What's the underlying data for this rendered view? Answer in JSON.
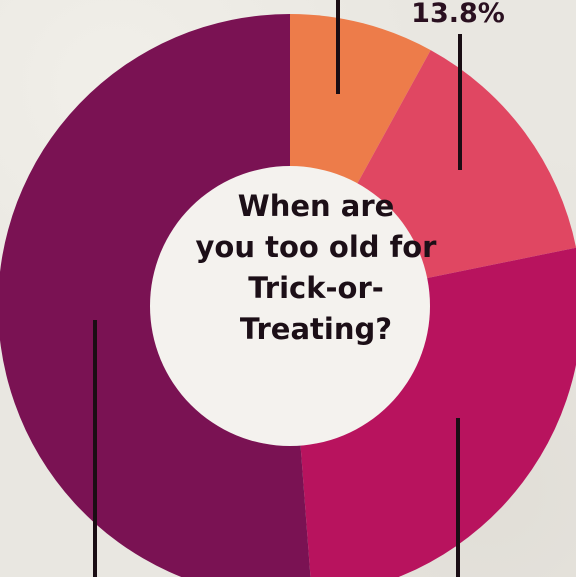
{
  "chart_data": {
    "type": "pie",
    "title_lines": [
      "When are",
      "you too old for",
      "Trick-or-",
      "Treating?"
    ],
    "slices": [
      {
        "value": 8.0,
        "label": "",
        "color": "#ed7c4a"
      },
      {
        "value": 13.8,
        "label": "13.8%",
        "color": "#e04762"
      },
      {
        "value": 27.0,
        "label": "",
        "color": "#b8135e"
      },
      {
        "value": 51.2,
        "label": "",
        "color": "#7a1253"
      }
    ],
    "start_angle_deg": 0,
    "donut": true
  }
}
